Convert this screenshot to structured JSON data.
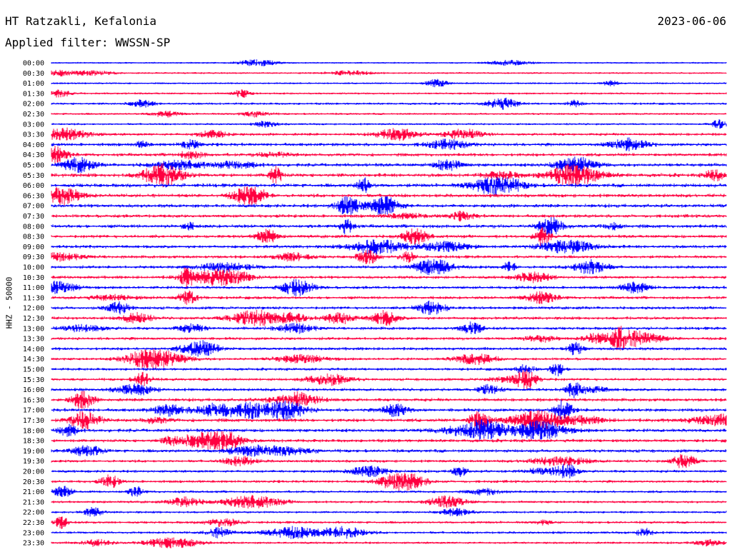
{
  "header": {
    "station": "HT Ratzakli, Kefalonia",
    "date": "2023-06-06",
    "filter": "Applied filter: WWSSN-SP"
  },
  "channel_label": "HHZ - 50000",
  "colors": {
    "odd_rows": "#0000ff",
    "even_rows": "#ff0040",
    "background": "#ffffff",
    "text": "#000000"
  },
  "chart_data": {
    "type": "line",
    "title": "HT Ratzakli, Kefalonia",
    "subtitle": "Applied filter: WWSSN-SP",
    "ylabel": "HHZ - 50000",
    "xlabel": "",
    "grid": false,
    "rows": [
      "00:00",
      "00:30",
      "01:00",
      "01:30",
      "02:00",
      "02:30",
      "03:00",
      "03:30",
      "04:00",
      "04:30",
      "05:00",
      "05:30",
      "06:00",
      "06:30",
      "07:00",
      "07:30",
      "08:00",
      "08:30",
      "09:00",
      "09:30",
      "10:00",
      "10:30",
      "11:00",
      "11:30",
      "12:00",
      "12:30",
      "13:00",
      "13:30",
      "14:00",
      "14:30",
      "15:00",
      "15:30",
      "16:00",
      "16:30",
      "17:00",
      "17:30",
      "18:00",
      "18:30",
      "19:00",
      "19:30",
      "20:00",
      "20:30",
      "21:00",
      "21:30",
      "22:00",
      "22:30",
      "23:00",
      "23:30"
    ],
    "row_colors": [
      "blue",
      "red"
    ],
    "activity_level": [
      0.1,
      0.2,
      0.2,
      0.3,
      0.4,
      0.3,
      0.3,
      0.6,
      0.8,
      0.8,
      0.9,
      1.0,
      1.0,
      0.9,
      0.9,
      0.8,
      0.9,
      0.8,
      0.8,
      0.7,
      0.7,
      0.7,
      0.7,
      0.7,
      0.7,
      0.7,
      0.7,
      0.7,
      0.7,
      0.6,
      0.6,
      0.6,
      0.7,
      0.8,
      0.9,
      0.9,
      0.9,
      0.8,
      0.8,
      0.6,
      0.6,
      0.6,
      0.5,
      0.5,
      0.4,
      0.5,
      0.5,
      0.4
    ]
  }
}
